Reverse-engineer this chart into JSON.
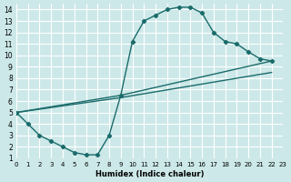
{
  "xlabel": "Humidex (Indice chaleur)",
  "bg_color": "#cde8e8",
  "grid_color": "#ffffff",
  "line_color": "#1a6b6b",
  "xlim": [
    0,
    23
  ],
  "ylim": [
    1,
    14.5
  ],
  "xticks": [
    0,
    1,
    2,
    3,
    4,
    5,
    6,
    7,
    8,
    9,
    10,
    11,
    12,
    13,
    14,
    15,
    16,
    17,
    18,
    19,
    20,
    21,
    22,
    23
  ],
  "yticks": [
    1,
    2,
    3,
    4,
    5,
    6,
    7,
    8,
    9,
    10,
    11,
    12,
    13,
    14
  ],
  "curve1_x": [
    0,
    1,
    2,
    3,
    4,
    5,
    6,
    7,
    8,
    9,
    10,
    11,
    12,
    13,
    14,
    15,
    16,
    17,
    18,
    19,
    20,
    21,
    22
  ],
  "curve1_y": [
    5,
    4,
    3,
    2.5,
    2,
    1.5,
    1.3,
    1.3,
    3,
    6.5,
    11.2,
    13,
    13.5,
    14,
    14.2,
    14.2,
    13.7,
    12,
    11.2,
    11,
    10.3,
    9.7,
    9.5
  ],
  "curve2_x": [
    0,
    9,
    22
  ],
  "curve2_y": [
    5,
    6.5,
    9.5
  ],
  "curve3_x": [
    0,
    9,
    22
  ],
  "curve3_y": [
    5,
    6.3,
    8.5
  ]
}
